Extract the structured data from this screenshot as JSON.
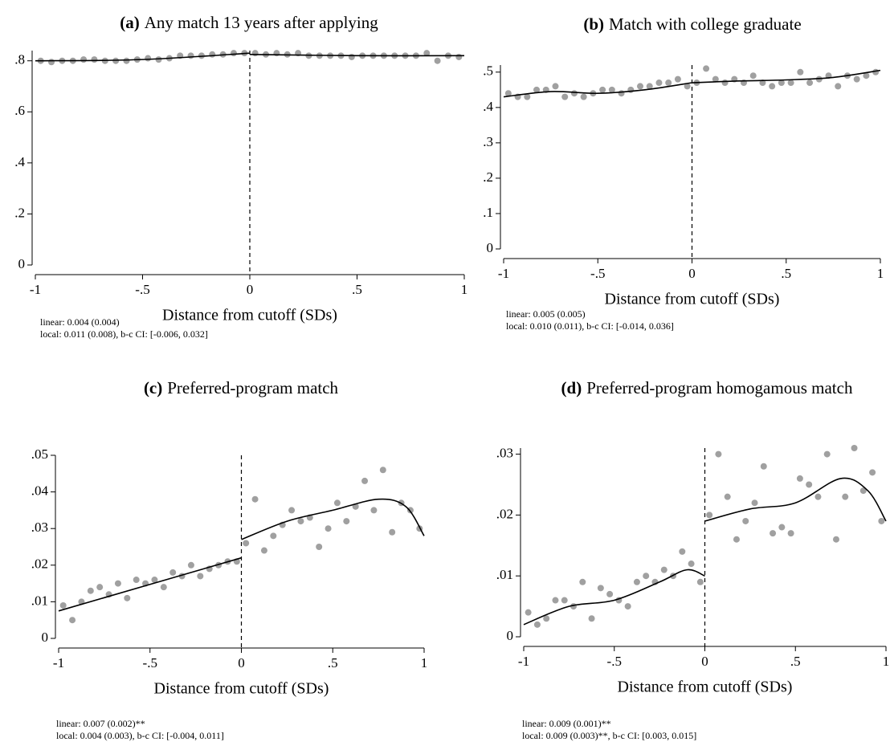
{
  "chart_data": [
    {
      "type": "scatter",
      "label": "(a)",
      "title": "Any match 13 years after applying",
      "xlabel": "Distance from cutoff (SDs)",
      "notes": [
        "linear: 0.004 (0.004)",
        "local: 0.011 (0.008), b-c CI: [-0.006, 0.032]"
      ],
      "xlim": [
        -1,
        1
      ],
      "ylim": [
        0,
        0.84
      ],
      "cutoff": 0,
      "point_color": "#a0a0a0",
      "line_color": "#000000",
      "xticks": [
        -1,
        {
          "value": -0.5,
          "label": "-.5"
        },
        0,
        {
          "value": 0.5,
          "label": ".5"
        },
        1
      ],
      "yticks": [
        0,
        {
          "value": 0.2,
          "label": ".2"
        },
        {
          "value": 0.4,
          "label": ".4"
        },
        {
          "value": 0.6,
          "label": ".6"
        },
        {
          "value": 0.8,
          "label": ".8"
        }
      ],
      "points": {
        "x": [
          -0.975,
          -0.925,
          -0.875,
          -0.825,
          -0.775,
          -0.725,
          -0.675,
          -0.625,
          -0.575,
          -0.525,
          -0.475,
          -0.425,
          -0.375,
          -0.325,
          -0.275,
          -0.225,
          -0.175,
          -0.125,
          -0.075,
          -0.025,
          0.025,
          0.075,
          0.125,
          0.175,
          0.225,
          0.275,
          0.325,
          0.375,
          0.425,
          0.475,
          0.525,
          0.575,
          0.625,
          0.675,
          0.725,
          0.775,
          0.825,
          0.875,
          0.925,
          0.975
        ],
        "y": [
          0.8,
          0.795,
          0.8,
          0.8,
          0.805,
          0.805,
          0.8,
          0.8,
          0.8,
          0.805,
          0.81,
          0.805,
          0.81,
          0.82,
          0.82,
          0.82,
          0.825,
          0.825,
          0.83,
          0.83,
          0.83,
          0.825,
          0.83,
          0.825,
          0.83,
          0.82,
          0.82,
          0.82,
          0.82,
          0.815,
          0.82,
          0.82,
          0.82,
          0.82,
          0.82,
          0.82,
          0.83,
          0.8,
          0.82,
          0.815
        ]
      },
      "fit": [
        {
          "x": [
            -1,
            -0.5,
            0
          ],
          "y": [
            0.8,
            0.805,
            0.83
          ]
        },
        {
          "x": [
            0,
            0.5,
            1
          ],
          "y": [
            0.825,
            0.82,
            0.82
          ]
        }
      ]
    },
    {
      "type": "scatter",
      "label": "(b)",
      "title": "Match with college graduate",
      "xlabel": "Distance from cutoff (SDs)",
      "notes": [
        "linear: 0.005 (0.005)",
        "local: 0.010 (0.011), b-c CI: [-0.014, 0.036]"
      ],
      "xlim": [
        -1,
        1
      ],
      "ylim": [
        0,
        0.52
      ],
      "cutoff": 0,
      "point_color": "#a0a0a0",
      "line_color": "#000000",
      "xticks": [
        -1,
        {
          "value": -0.5,
          "label": "-.5"
        },
        0,
        {
          "value": 0.5,
          "label": ".5"
        },
        1
      ],
      "yticks": [
        0,
        {
          "value": 0.1,
          "label": ".1"
        },
        {
          "value": 0.2,
          "label": ".2"
        },
        {
          "value": 0.3,
          "label": ".3"
        },
        {
          "value": 0.4,
          "label": ".4"
        },
        {
          "value": 0.5,
          "label": ".5"
        }
      ],
      "points": {
        "x": [
          -0.975,
          -0.925,
          -0.875,
          -0.825,
          -0.775,
          -0.725,
          -0.675,
          -0.625,
          -0.575,
          -0.525,
          -0.475,
          -0.425,
          -0.375,
          -0.325,
          -0.275,
          -0.225,
          -0.175,
          -0.125,
          -0.075,
          -0.025,
          0.025,
          0.075,
          0.125,
          0.175,
          0.225,
          0.275,
          0.325,
          0.375,
          0.425,
          0.475,
          0.525,
          0.575,
          0.625,
          0.675,
          0.725,
          0.775,
          0.825,
          0.875,
          0.925,
          0.975
        ],
        "y": [
          0.44,
          0.43,
          0.43,
          0.45,
          0.45,
          0.46,
          0.43,
          0.44,
          0.43,
          0.44,
          0.45,
          0.45,
          0.44,
          0.45,
          0.46,
          0.46,
          0.47,
          0.47,
          0.48,
          0.46,
          0.47,
          0.51,
          0.48,
          0.47,
          0.48,
          0.47,
          0.49,
          0.47,
          0.46,
          0.47,
          0.47,
          0.5,
          0.47,
          0.48,
          0.49,
          0.46,
          0.49,
          0.48,
          0.49,
          0.5
        ]
      },
      "fit": [
        {
          "x": [
            -1,
            -0.75,
            -0.5,
            -0.25,
            0
          ],
          "y": [
            0.43,
            0.445,
            0.44,
            0.45,
            0.47
          ]
        },
        {
          "x": [
            0,
            0.25,
            0.5,
            0.75,
            1
          ],
          "y": [
            0.47,
            0.475,
            0.478,
            0.485,
            0.505
          ]
        }
      ]
    },
    {
      "type": "scatter",
      "label": "(c)",
      "title": "Preferred-program match",
      "xlabel": "Distance from cutoff (SDs)",
      "notes": [
        "linear: 0.007 (0.002)**",
        "local: 0.004 (0.003), b-c CI: [-0.004, 0.011]"
      ],
      "xlim": [
        -1,
        1
      ],
      "ylim": [
        0,
        0.05
      ],
      "cutoff": 0,
      "point_color": "#a0a0a0",
      "line_color": "#000000",
      "xticks": [
        -1,
        {
          "value": -0.5,
          "label": "-.5"
        },
        0,
        {
          "value": 0.5,
          "label": ".5"
        },
        1
      ],
      "yticks": [
        0,
        {
          "value": 0.01,
          "label": ".01"
        },
        {
          "value": 0.02,
          "label": ".02"
        },
        {
          "value": 0.03,
          "label": ".03"
        },
        {
          "value": 0.04,
          "label": ".04"
        },
        {
          "value": 0.05,
          "label": ".05"
        }
      ],
      "points": {
        "x": [
          -0.975,
          -0.925,
          -0.875,
          -0.825,
          -0.775,
          -0.725,
          -0.675,
          -0.625,
          -0.575,
          -0.525,
          -0.475,
          -0.425,
          -0.375,
          -0.325,
          -0.275,
          -0.225,
          -0.175,
          -0.125,
          -0.075,
          -0.025,
          0.025,
          0.075,
          0.125,
          0.175,
          0.225,
          0.275,
          0.325,
          0.375,
          0.425,
          0.475,
          0.525,
          0.575,
          0.625,
          0.675,
          0.725,
          0.775,
          0.825,
          0.875,
          0.925,
          0.975
        ],
        "y": [
          0.009,
          0.005,
          0.01,
          0.013,
          0.014,
          0.012,
          0.015,
          0.011,
          0.016,
          0.015,
          0.016,
          0.014,
          0.018,
          0.017,
          0.02,
          0.017,
          0.019,
          0.02,
          0.021,
          0.021,
          0.026,
          0.038,
          0.024,
          0.028,
          0.031,
          0.035,
          0.032,
          0.033,
          0.025,
          0.03,
          0.037,
          0.032,
          0.036,
          0.043,
          0.035,
          0.046,
          0.029,
          0.037,
          0.035,
          0.03
        ]
      },
      "fit": [
        {
          "x": [
            -1,
            0
          ],
          "y": [
            0.0075,
            0.022
          ]
        },
        {
          "x": [
            0,
            0.25,
            0.5,
            0.75,
            0.9,
            1
          ],
          "y": [
            0.027,
            0.032,
            0.035,
            0.038,
            0.036,
            0.028
          ]
        }
      ]
    },
    {
      "type": "scatter",
      "label": "(d)",
      "title": "Preferred-program homogamous match",
      "xlabel": "Distance from cutoff (SDs)",
      "notes": [
        "linear: 0.009 (0.001)**",
        "local: 0.009 (0.003)**, b-c CI: [0.003, 0.015]"
      ],
      "xlim": [
        -1,
        1
      ],
      "ylim": [
        0,
        0.031
      ],
      "cutoff": 0,
      "point_color": "#a0a0a0",
      "line_color": "#000000",
      "xticks": [
        -1,
        {
          "value": -0.5,
          "label": "-.5"
        },
        0,
        {
          "value": 0.5,
          "label": ".5"
        },
        1
      ],
      "yticks": [
        0,
        {
          "value": 0.01,
          "label": ".01"
        },
        {
          "value": 0.02,
          "label": ".02"
        },
        {
          "value": 0.03,
          "label": ".03"
        }
      ],
      "points": {
        "x": [
          -0.975,
          -0.925,
          -0.875,
          -0.825,
          -0.775,
          -0.725,
          -0.675,
          -0.625,
          -0.575,
          -0.525,
          -0.475,
          -0.425,
          -0.375,
          -0.325,
          -0.275,
          -0.225,
          -0.175,
          -0.125,
          -0.075,
          -0.025,
          0.025,
          0.075,
          0.125,
          0.175,
          0.225,
          0.275,
          0.325,
          0.375,
          0.425,
          0.475,
          0.525,
          0.575,
          0.625,
          0.675,
          0.725,
          0.775,
          0.825,
          0.875,
          0.925,
          0.975
        ],
        "y": [
          0.004,
          0.002,
          0.003,
          0.006,
          0.006,
          0.005,
          0.009,
          0.003,
          0.008,
          0.007,
          0.006,
          0.005,
          0.009,
          0.01,
          0.009,
          0.011,
          0.01,
          0.014,
          0.012,
          0.009,
          0.02,
          0.03,
          0.023,
          0.016,
          0.019,
          0.022,
          0.028,
          0.017,
          0.018,
          0.017,
          0.026,
          0.025,
          0.023,
          0.03,
          0.016,
          0.023,
          0.031,
          0.024,
          0.027,
          0.019
        ]
      },
      "fit": [
        {
          "x": [
            -1,
            -0.75,
            -0.5,
            -0.25,
            -0.1,
            0
          ],
          "y": [
            0.002,
            0.005,
            0.006,
            0.009,
            0.011,
            0.01
          ]
        },
        {
          "x": [
            0,
            0.25,
            0.5,
            0.75,
            0.9,
            1
          ],
          "y": [
            0.019,
            0.021,
            0.022,
            0.026,
            0.024,
            0.019
          ]
        }
      ]
    }
  ]
}
